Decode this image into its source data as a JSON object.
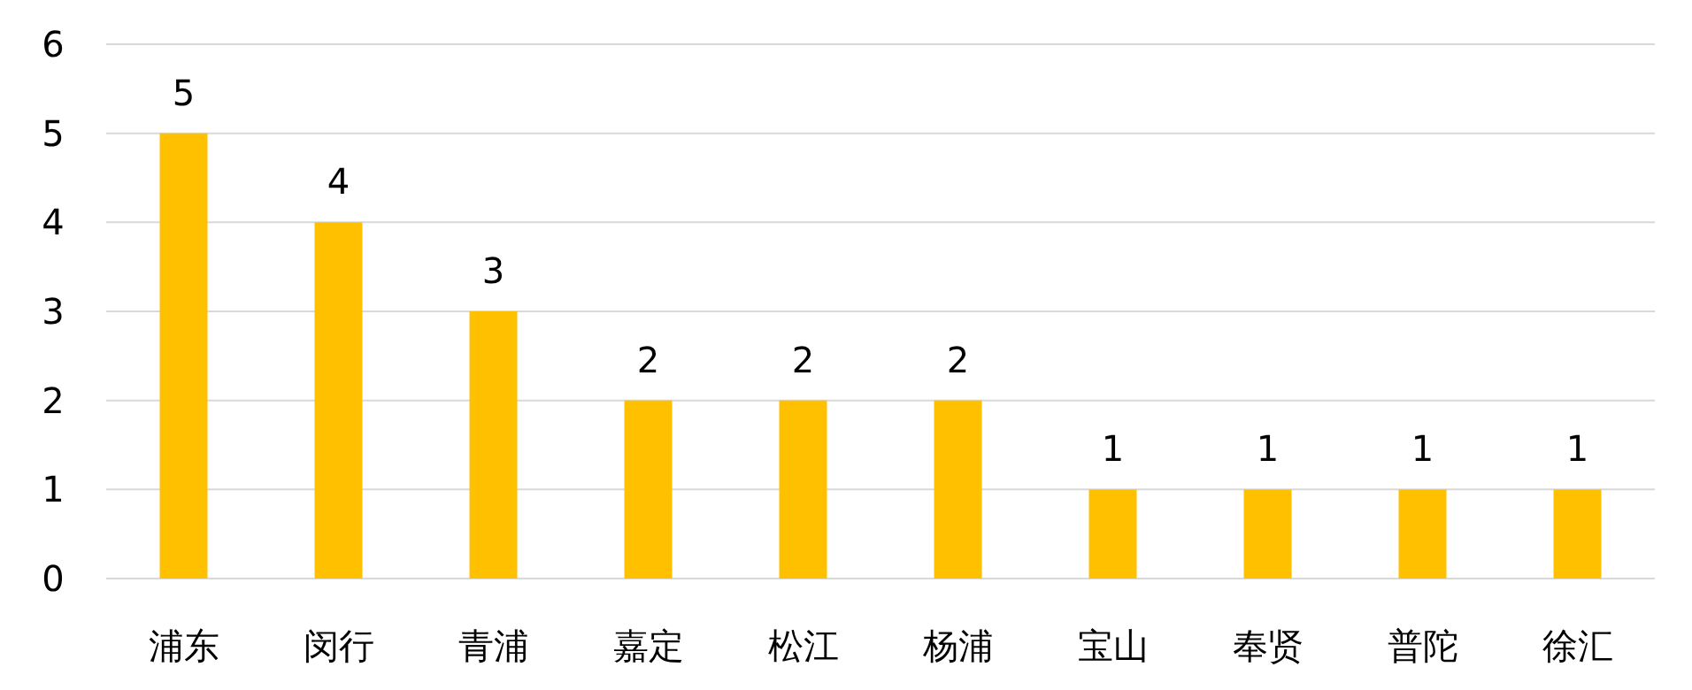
{
  "chart_data": {
    "type": "bar",
    "categories": [
      "浦东",
      "闵行",
      "青浦",
      "嘉定",
      "松江",
      "杨浦",
      "宝山",
      "奉贤",
      "普陀",
      "徐汇"
    ],
    "values": [
      5,
      4,
      3,
      2,
      2,
      2,
      1,
      1,
      1,
      1
    ],
    "color": "#ffc000",
    "ylim": [
      0,
      6
    ],
    "yticks": [
      0,
      1,
      2,
      3,
      4,
      5,
      6
    ],
    "grid": "y",
    "data_labels": true
  }
}
